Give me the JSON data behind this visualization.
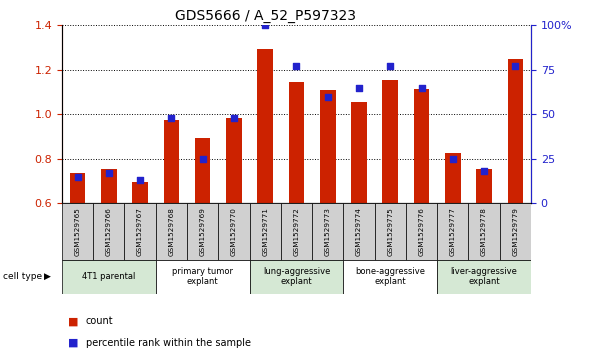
{
  "title": "GDS5666 / A_52_P597323",
  "samples": [
    "GSM1529765",
    "GSM1529766",
    "GSM1529767",
    "GSM1529768",
    "GSM1529769",
    "GSM1529770",
    "GSM1529771",
    "GSM1529772",
    "GSM1529773",
    "GSM1529774",
    "GSM1529775",
    "GSM1529776",
    "GSM1529777",
    "GSM1529778",
    "GSM1529779"
  ],
  "count_values": [
    0.735,
    0.755,
    0.695,
    0.975,
    0.895,
    0.985,
    1.295,
    1.145,
    1.11,
    1.055,
    1.155,
    1.115,
    0.825,
    0.755,
    1.25
  ],
  "percentile_rank": [
    15,
    17,
    13,
    48,
    25,
    48,
    100,
    77,
    60,
    65,
    77,
    65,
    25,
    18,
    77
  ],
  "ylim_left": [
    0.6,
    1.4
  ],
  "ylim_right": [
    0,
    100
  ],
  "yticks_left": [
    0.6,
    0.8,
    1.0,
    1.2,
    1.4
  ],
  "yticks_right": [
    0,
    25,
    50,
    75,
    100
  ],
  "cell_types": [
    {
      "label": "4T1 parental",
      "start": 0,
      "end": 3,
      "color": "#d5e8d4"
    },
    {
      "label": "primary tumor\nexplant",
      "start": 3,
      "end": 6,
      "color": "#ffffff"
    },
    {
      "label": "lung-aggressive\nexplant",
      "start": 6,
      "end": 9,
      "color": "#d5e8d4"
    },
    {
      "label": "bone-aggressive\nexplant",
      "start": 9,
      "end": 12,
      "color": "#ffffff"
    },
    {
      "label": "liver-aggressive\nexplant",
      "start": 12,
      "end": 15,
      "color": "#d5e8d4"
    }
  ],
  "bar_color": "#cc2200",
  "dot_color": "#2222cc",
  "plot_bg": "#ffffff",
  "left_axis_color": "#cc2200",
  "right_axis_color": "#2222cc",
  "sample_bg": "#d0d0d0"
}
